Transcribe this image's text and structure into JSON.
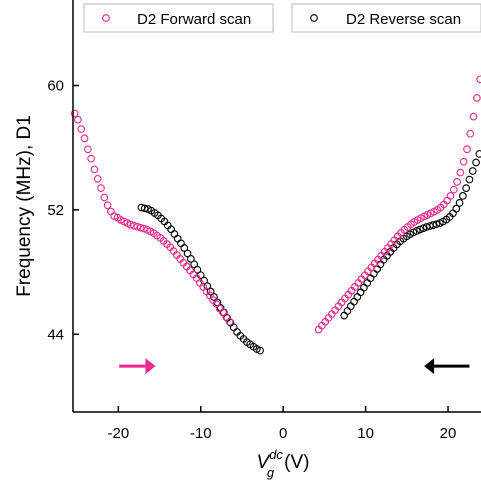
{
  "chart_data": {
    "type": "scatter",
    "xlabel": "V_g^dc (V)",
    "xlabel_parts": {
      "base": "V",
      "sub": "g",
      "sup": "dc",
      "unit": "(V)"
    },
    "ylabel": "Frequency (MHz), D1",
    "xlim": [
      -25.5,
      24
    ],
    "ylim": [
      39,
      65.5
    ],
    "xticks": [
      -20,
      -10,
      0,
      10,
      20
    ],
    "yticks": [
      44,
      52,
      60
    ],
    "xtick_labels": [
      "-20",
      "-10",
      "0",
      "10",
      "20"
    ],
    "ytick_labels": [
      "44",
      "52",
      "60"
    ],
    "grid": false,
    "legend_position": "top",
    "series": [
      {
        "name": "D2 Forward scan",
        "color": "#e8288c",
        "marker": "open-circle",
        "points": [
          [
            -25.3,
            58.2
          ],
          [
            -24.9,
            57.8
          ],
          [
            -24.5,
            57.2
          ],
          [
            -24.1,
            56.6
          ],
          [
            -23.7,
            55.9
          ],
          [
            -23.3,
            55.3
          ],
          [
            -22.9,
            54.6
          ],
          [
            -22.5,
            54.0
          ],
          [
            -22.1,
            53.4
          ],
          [
            -21.7,
            52.8
          ],
          [
            -21.3,
            52.3
          ],
          [
            -20.9,
            51.9
          ],
          [
            -20.5,
            51.6
          ],
          [
            -20.1,
            51.5
          ],
          [
            -19.7,
            51.35
          ],
          [
            -19.3,
            51.25
          ],
          [
            -18.9,
            51.15
          ],
          [
            -18.5,
            51.05
          ],
          [
            -18.1,
            50.98
          ],
          [
            -17.7,
            50.92
          ],
          [
            -17.3,
            50.85
          ],
          [
            -16.9,
            50.8
          ],
          [
            -16.5,
            50.72
          ],
          [
            -16.1,
            50.62
          ],
          [
            -15.7,
            50.5
          ],
          [
            -15.3,
            50.35
          ],
          [
            -14.9,
            50.2
          ],
          [
            -14.5,
            50.0
          ],
          [
            -14.1,
            49.8
          ],
          [
            -13.7,
            49.6
          ],
          [
            -13.3,
            49.35
          ],
          [
            -12.9,
            49.1
          ],
          [
            -12.5,
            48.85
          ],
          [
            -12.1,
            48.6
          ],
          [
            -11.7,
            48.35
          ],
          [
            -11.3,
            48.1
          ],
          [
            -10.9,
            47.85
          ],
          [
            -10.5,
            47.6
          ],
          [
            -10.1,
            47.3
          ],
          [
            -9.7,
            47.05
          ],
          [
            -9.3,
            46.75
          ],
          [
            -8.9,
            46.5
          ],
          [
            -8.5,
            46.2
          ],
          [
            -8.1,
            45.95
          ],
          [
            -7.7,
            45.65
          ],
          [
            -7.3,
            45.4
          ],
          [
            -6.9,
            45.1
          ],
          [
            -6.5,
            44.8
          ],
          [
            4.3,
            44.3
          ],
          [
            4.7,
            44.55
          ],
          [
            5.1,
            44.8
          ],
          [
            5.5,
            45.05
          ],
          [
            5.9,
            45.3
          ],
          [
            6.3,
            45.55
          ],
          [
            6.7,
            45.8
          ],
          [
            7.1,
            46.05
          ],
          [
            7.5,
            46.3
          ],
          [
            7.9,
            46.55
          ],
          [
            8.3,
            46.8
          ],
          [
            8.7,
            47.05
          ],
          [
            9.1,
            47.3
          ],
          [
            9.5,
            47.55
          ],
          [
            9.9,
            47.8
          ],
          [
            10.3,
            48.05
          ],
          [
            10.7,
            48.3
          ],
          [
            11.1,
            48.55
          ],
          [
            11.5,
            48.8
          ],
          [
            11.9,
            49.05
          ],
          [
            12.3,
            49.3
          ],
          [
            12.7,
            49.55
          ],
          [
            13.1,
            49.8
          ],
          [
            13.5,
            50.05
          ],
          [
            13.9,
            50.3
          ],
          [
            14.3,
            50.52
          ],
          [
            14.7,
            50.72
          ],
          [
            15.1,
            50.9
          ],
          [
            15.5,
            51.08
          ],
          [
            15.9,
            51.22
          ],
          [
            16.3,
            51.35
          ],
          [
            16.7,
            51.47
          ],
          [
            17.1,
            51.58
          ],
          [
            17.5,
            51.68
          ],
          [
            17.9,
            51.78
          ],
          [
            18.3,
            51.88
          ],
          [
            18.7,
            52.0
          ],
          [
            19.1,
            52.15
          ],
          [
            19.5,
            52.35
          ],
          [
            19.9,
            52.6
          ],
          [
            20.3,
            52.9
          ],
          [
            20.7,
            53.3
          ],
          [
            21.1,
            53.8
          ],
          [
            21.5,
            54.4
          ],
          [
            21.9,
            55.1
          ],
          [
            22.3,
            55.9
          ],
          [
            22.7,
            56.9
          ],
          [
            23.1,
            58.0
          ],
          [
            23.5,
            59.2
          ],
          [
            23.9,
            60.4
          ]
        ]
      },
      {
        "name": "D2 Reverse scan",
        "color": "#000000",
        "marker": "open-circle",
        "points": [
          [
            -17.2,
            52.15
          ],
          [
            -16.8,
            52.1
          ],
          [
            -16.4,
            52.05
          ],
          [
            -16.0,
            51.95
          ],
          [
            -15.6,
            51.8
          ],
          [
            -15.2,
            51.65
          ],
          [
            -14.8,
            51.45
          ],
          [
            -14.4,
            51.25
          ],
          [
            -14.0,
            51.0
          ],
          [
            -13.6,
            50.75
          ],
          [
            -13.2,
            50.45
          ],
          [
            -12.8,
            50.15
          ],
          [
            -12.4,
            49.85
          ],
          [
            -12.0,
            49.55
          ],
          [
            -11.6,
            49.2
          ],
          [
            -11.2,
            48.85
          ],
          [
            -10.8,
            48.5
          ],
          [
            -10.4,
            48.15
          ],
          [
            -10.0,
            47.8
          ],
          [
            -9.6,
            47.45
          ],
          [
            -9.2,
            47.1
          ],
          [
            -8.8,
            46.75
          ],
          [
            -8.4,
            46.4
          ],
          [
            -8.0,
            46.05
          ],
          [
            -7.6,
            45.7
          ],
          [
            -7.2,
            45.4
          ],
          [
            -6.8,
            45.05
          ],
          [
            -6.4,
            44.75
          ],
          [
            -6.0,
            44.45
          ],
          [
            -5.6,
            44.15
          ],
          [
            -5.2,
            43.9
          ],
          [
            -4.8,
            43.7
          ],
          [
            -4.4,
            43.5
          ],
          [
            -4.0,
            43.35
          ],
          [
            -3.6,
            43.2
          ],
          [
            -3.2,
            43.05
          ],
          [
            -2.8,
            42.95
          ],
          [
            7.4,
            45.2
          ],
          [
            7.8,
            45.5
          ],
          [
            8.2,
            45.8
          ],
          [
            8.6,
            46.1
          ],
          [
            9.0,
            46.4
          ],
          [
            9.4,
            46.7
          ],
          [
            9.8,
            47.0
          ],
          [
            10.2,
            47.3
          ],
          [
            10.6,
            47.6
          ],
          [
            11.0,
            47.9
          ],
          [
            11.4,
            48.2
          ],
          [
            11.8,
            48.5
          ],
          [
            12.2,
            48.8
          ],
          [
            12.6,
            49.05
          ],
          [
            13.0,
            49.3
          ],
          [
            13.4,
            49.55
          ],
          [
            13.8,
            49.78
          ],
          [
            14.2,
            49.98
          ],
          [
            14.6,
            50.15
          ],
          [
            15.0,
            50.3
          ],
          [
            15.4,
            50.43
          ],
          [
            15.8,
            50.55
          ],
          [
            16.2,
            50.65
          ],
          [
            16.6,
            50.74
          ],
          [
            17.0,
            50.82
          ],
          [
            17.4,
            50.9
          ],
          [
            17.8,
            50.96
          ],
          [
            18.2,
            51.02
          ],
          [
            18.6,
            51.08
          ],
          [
            19.0,
            51.15
          ],
          [
            19.4,
            51.25
          ],
          [
            19.8,
            51.38
          ],
          [
            20.2,
            51.55
          ],
          [
            20.6,
            51.78
          ],
          [
            21.0,
            52.08
          ],
          [
            21.4,
            52.45
          ],
          [
            21.8,
            52.9
          ],
          [
            22.2,
            53.4
          ],
          [
            22.6,
            53.95
          ],
          [
            23.0,
            54.5
          ],
          [
            23.4,
            55.05
          ],
          [
            23.8,
            55.6
          ]
        ]
      }
    ],
    "annotations": [
      {
        "type": "arrow",
        "direction": "right",
        "color": "#e8288c",
        "from": [
          -19.9,
          41.95
        ],
        "to": [
          -15.5,
          41.95
        ]
      },
      {
        "type": "arrow",
        "direction": "left",
        "color": "#000000",
        "from": [
          22.6,
          41.95
        ],
        "to": [
          17.1,
          41.95
        ]
      }
    ]
  }
}
